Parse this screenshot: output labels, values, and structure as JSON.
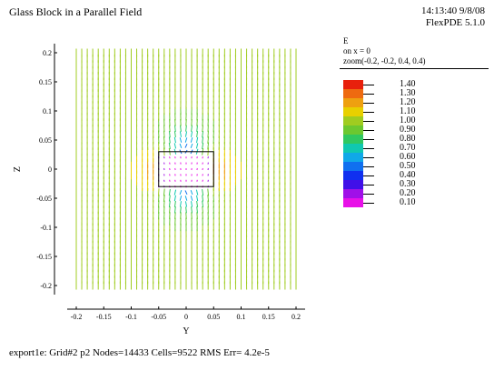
{
  "header": {
    "title": "Glass Block in a Parallel Field",
    "time": "14:13:40 9/8/08",
    "version": "FlexPDE 5.1.0"
  },
  "legend": {
    "heading": "E",
    "line1": "on x = 0",
    "line2": "zoom(-0.2, -0.2, 0.4, 0.4)",
    "entries": [
      {
        "value": "1.40",
        "color": "#e8200c"
      },
      {
        "value": "1.30",
        "color": "#ee6a10"
      },
      {
        "value": "1.20",
        "color": "#eea010"
      },
      {
        "value": "1.10",
        "color": "#e8d000"
      },
      {
        "value": "1.00",
        "color": "#a0cc20"
      },
      {
        "value": "0.90",
        "color": "#6cc830"
      },
      {
        "value": "0.80",
        "color": "#30c860"
      },
      {
        "value": "0.70",
        "color": "#10c8b0"
      },
      {
        "value": "0.60",
        "color": "#10a8e8"
      },
      {
        "value": "0.50",
        "color": "#1070f0"
      },
      {
        "value": "0.40",
        "color": "#1030f0"
      },
      {
        "value": "0.30",
        "color": "#4010e8"
      },
      {
        "value": "0.20",
        "color": "#a010e8"
      },
      {
        "value": "0.10",
        "color": "#e810e8"
      }
    ]
  },
  "footer": {
    "text": "export1e:  Grid#2  p2  Nodes=14433 Cells=9522 RMS Err= 4.2e-5"
  },
  "chart_data": {
    "type": "vector-field",
    "xlabel": "Y",
    "ylabel": "Z",
    "xlim": [
      -0.2,
      0.2
    ],
    "ylim": [
      -0.2,
      0.2
    ],
    "x_ticks": [
      "-0.2",
      "-0.15",
      "-0.1",
      "-0.05",
      "0",
      "0.05",
      "0.1",
      "0.15",
      "0.2"
    ],
    "y_ticks": [
      "0.2",
      "0.15",
      "0.1",
      "0.05",
      "0",
      "-0.05",
      "-0.1",
      "-0.15",
      "-0.2"
    ],
    "grid": false,
    "block": {
      "y": [
        -0.05,
        0.05
      ],
      "z": [
        -0.03,
        0.03
      ]
    },
    "uniform_field": 1.0,
    "field_direction": "vertical (z)"
  }
}
